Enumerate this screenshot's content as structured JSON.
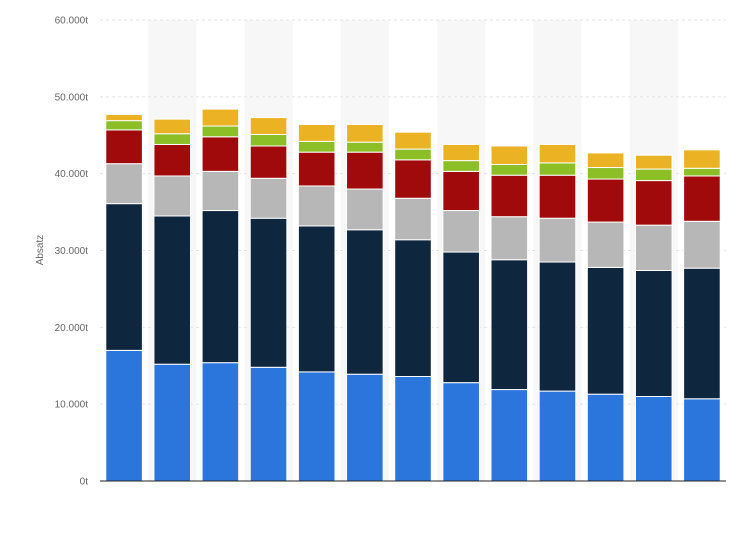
{
  "chart_data": {
    "type": "bar",
    "stacked": true,
    "ylabel": "Absatz",
    "ylim": [
      0,
      60000
    ],
    "y_ticks": [
      {
        "value": 0,
        "label": "0t"
      },
      {
        "value": 10000,
        "label": "10.000t"
      },
      {
        "value": 20000,
        "label": "20.000t"
      },
      {
        "value": 30000,
        "label": "30.000t"
      },
      {
        "value": 40000,
        "label": "40.000t"
      },
      {
        "value": 50000,
        "label": "50.000t"
      },
      {
        "value": 60000,
        "label": "60.000t"
      }
    ],
    "grid": true,
    "category_count": 13,
    "series": [
      {
        "color": "#2a76dd",
        "values": [
          17000,
          15200,
          15400,
          14800,
          14200,
          13900,
          13600,
          12800,
          11900,
          11700,
          11300,
          11000,
          10700
        ]
      },
      {
        "color": "#0f263f",
        "values": [
          19100,
          19300,
          19800,
          19400,
          19000,
          18800,
          17800,
          17000,
          16900,
          16800,
          16500,
          16400,
          17000
        ]
      },
      {
        "color": "#b7b7b7",
        "values": [
          5200,
          5200,
          5100,
          5200,
          5200,
          5300,
          5400,
          5400,
          5600,
          5700,
          5900,
          5900,
          6100
        ]
      },
      {
        "color": "#a10a0a",
        "values": [
          4400,
          4100,
          4500,
          4200,
          4400,
          4800,
          5000,
          5100,
          5400,
          5600,
          5600,
          5800,
          5900
        ]
      },
      {
        "color": "#8cbf26",
        "values": [
          1200,
          1400,
          1400,
          1500,
          1400,
          1300,
          1400,
          1400,
          1400,
          1600,
          1500,
          1500,
          1000
        ]
      },
      {
        "color": "#ebb323",
        "values": [
          800,
          1900,
          2200,
          2200,
          2200,
          2300,
          2200,
          2100,
          2400,
          2400,
          1900,
          1800,
          2400
        ]
      }
    ]
  }
}
